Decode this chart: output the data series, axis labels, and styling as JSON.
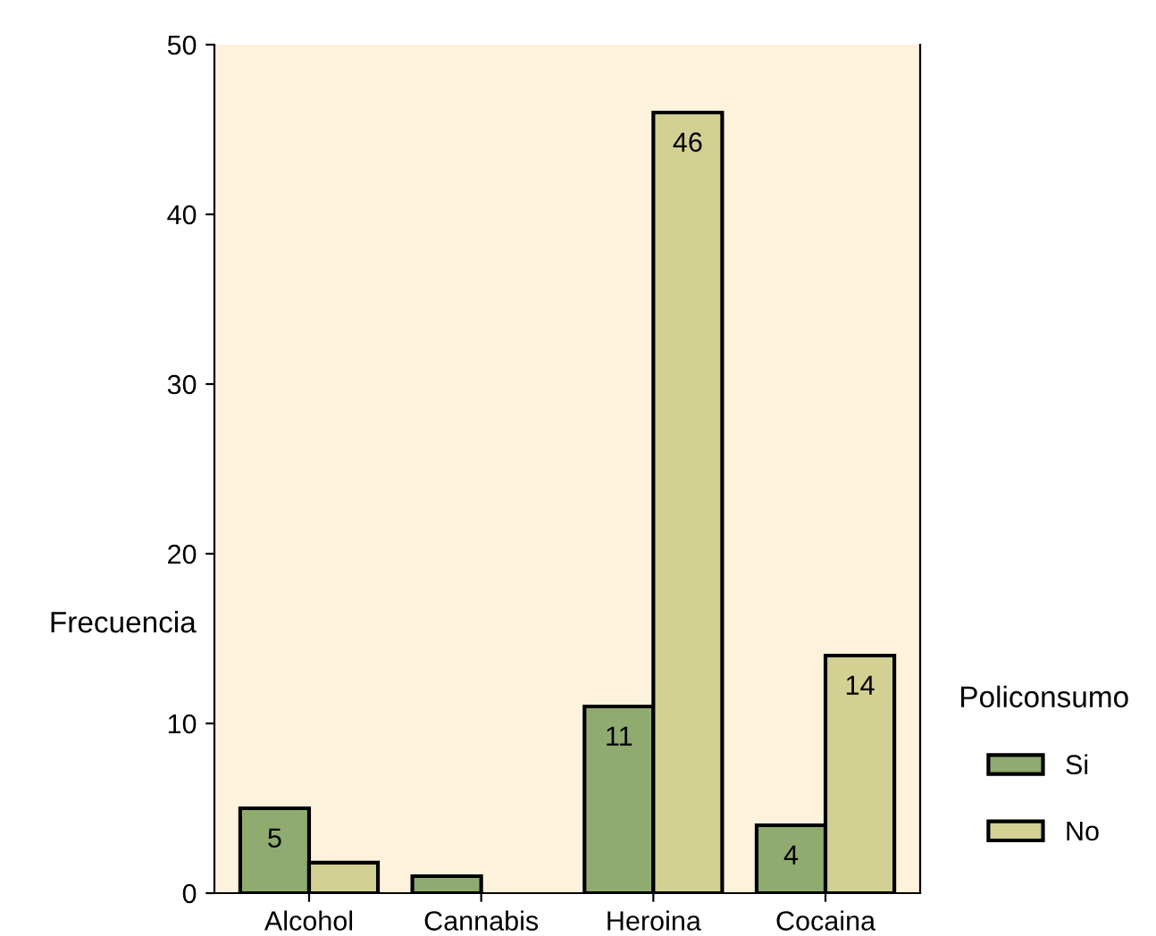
{
  "chart_data": {
    "type": "bar",
    "ylabel": "Frecuencia",
    "legend_title": "Policonsumo",
    "categories": [
      "Alcohol",
      "Cannabis",
      "Heroina",
      "Cocaina"
    ],
    "series": [
      {
        "name": "Si",
        "color": "#8fab6f",
        "values": [
          5,
          1,
          11,
          4
        ],
        "value_labels": [
          "5",
          null,
          "11",
          "4"
        ]
      },
      {
        "name": "No",
        "color": "#d3d093",
        "values": [
          1.8,
          null,
          46,
          14
        ],
        "value_labels": [
          null,
          null,
          "46",
          "14"
        ]
      }
    ],
    "ylim": [
      0,
      50
    ],
    "yticks": [
      0,
      10,
      20,
      30,
      40,
      50
    ],
    "grid": false,
    "legend": "right"
  }
}
